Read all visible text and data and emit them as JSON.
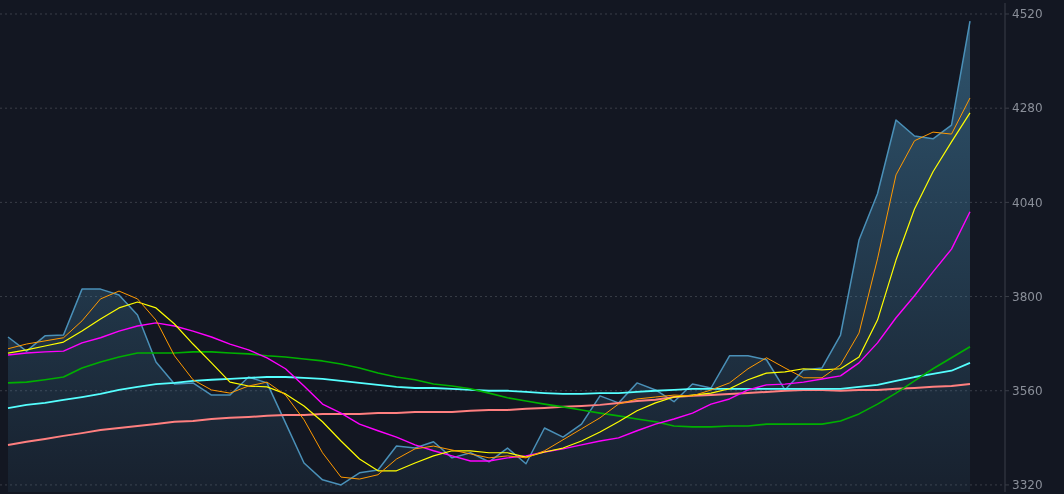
{
  "chart_data": {
    "type": "line",
    "categories": [
      null,
      null,
      null,
      null,
      null,
      null,
      null,
      null,
      null,
      null,
      null,
      null,
      null,
      null,
      null,
      null,
      null,
      null,
      null,
      null,
      null,
      null,
      null,
      null,
      null,
      null,
      null,
      null,
      null,
      null,
      null,
      null,
      null,
      null,
      null,
      null,
      null,
      null,
      null,
      null,
      null,
      null,
      null,
      null,
      null,
      null,
      null,
      null,
      null,
      null,
      null,
      null,
      null
    ],
    "series": [
      {
        "type": "area",
        "color": "#4a90b8",
        "values": [
          3697,
          3661,
          3700,
          3702,
          3819,
          3819,
          3804,
          3753,
          3633,
          3577,
          3580,
          3549,
          3549,
          3595,
          3580,
          3478,
          3376,
          3333,
          3320,
          3351,
          3358,
          3419,
          3414,
          3430,
          3389,
          3402,
          3379,
          3414,
          3374,
          3465,
          3442,
          3475,
          3547,
          3529,
          3580,
          3562,
          3532,
          3577,
          3567,
          3649,
          3649,
          3639,
          3562,
          3613,
          3618,
          3702,
          3944,
          4062,
          4250,
          4209,
          4202,
          4237,
          4502
        ]
      },
      {
        "color": "#ff7f7f",
        "values": [
          3422,
          3430,
          3437,
          3445,
          3452,
          3460,
          3465,
          3470,
          3475,
          3481,
          3483,
          3488,
          3491,
          3493,
          3496,
          3498,
          3498,
          3501,
          3501,
          3501,
          3503,
          3503,
          3506,
          3506,
          3506,
          3509,
          3511,
          3511,
          3514,
          3516,
          3519,
          3521,
          3524,
          3529,
          3534,
          3537,
          3544,
          3547,
          3549,
          3552,
          3554,
          3557,
          3560,
          3562,
          3562,
          3560,
          3562,
          3562,
          3565,
          3567,
          3570,
          3572,
          3577
        ]
      },
      {
        "color": "#55ffff",
        "values": [
          3516,
          3524,
          3529,
          3537,
          3544,
          3552,
          3562,
          3570,
          3577,
          3580,
          3585,
          3588,
          3590,
          3593,
          3595,
          3595,
          3593,
          3590,
          3585,
          3580,
          3575,
          3570,
          3567,
          3567,
          3565,
          3562,
          3560,
          3560,
          3557,
          3554,
          3552,
          3552,
          3554,
          3554,
          3557,
          3560,
          3562,
          3565,
          3565,
          3565,
          3565,
          3565,
          3565,
          3565,
          3565,
          3565,
          3570,
          3575,
          3585,
          3595,
          3603,
          3611,
          3631
        ]
      },
      {
        "color": "#00b000",
        "values": [
          3580,
          3582,
          3588,
          3595,
          3618,
          3633,
          3646,
          3656,
          3656,
          3656,
          3659,
          3659,
          3656,
          3654,
          3649,
          3646,
          3641,
          3636,
          3628,
          3618,
          3605,
          3595,
          3588,
          3577,
          3572,
          3565,
          3554,
          3542,
          3534,
          3526,
          3519,
          3511,
          3503,
          3496,
          3488,
          3481,
          3470,
          3468,
          3468,
          3470,
          3470,
          3475,
          3475,
          3475,
          3475,
          3483,
          3501,
          3526,
          3554,
          3585,
          3616,
          3644,
          3672
        ]
      },
      {
        "color": "#ff00ff",
        "values": [
          3651,
          3656,
          3659,
          3661,
          3682,
          3695,
          3712,
          3725,
          3733,
          3725,
          3712,
          3697,
          3679,
          3664,
          3644,
          3616,
          3572,
          3526,
          3503,
          3475,
          3458,
          3442,
          3422,
          3407,
          3394,
          3381,
          3381,
          3389,
          3394,
          3404,
          3412,
          3422,
          3432,
          3440,
          3458,
          3475,
          3488,
          3503,
          3526,
          3539,
          3562,
          3575,
          3577,
          3582,
          3590,
          3598,
          3631,
          3682,
          3746,
          3802,
          3863,
          3921,
          4016
        ]
      },
      {
        "color": "#ffff00",
        "values": [
          3656,
          3664,
          3674,
          3684,
          3712,
          3743,
          3771,
          3786,
          3771,
          3730,
          3679,
          3631,
          3582,
          3572,
          3570,
          3552,
          3521,
          3481,
          3432,
          3386,
          3356,
          3356,
          3376,
          3394,
          3407,
          3407,
          3402,
          3402,
          3391,
          3404,
          3414,
          3432,
          3455,
          3481,
          3509,
          3529,
          3544,
          3549,
          3554,
          3565,
          3588,
          3605,
          3608,
          3616,
          3613,
          3616,
          3646,
          3740,
          3893,
          4023,
          4118,
          4194,
          4268
        ]
      },
      {
        "color": "#ff9900",
        "values": [
          3667,
          3679,
          3687,
          3695,
          3738,
          3794,
          3814,
          3794,
          3740,
          3649,
          3588,
          3562,
          3554,
          3572,
          3582,
          3549,
          3486,
          3402,
          3340,
          3335,
          3346,
          3386,
          3412,
          3419,
          3409,
          3399,
          3389,
          3394,
          3389,
          3407,
          3435,
          3463,
          3491,
          3526,
          3539,
          3544,
          3549,
          3547,
          3562,
          3580,
          3616,
          3644,
          3618,
          3593,
          3593,
          3626,
          3707,
          3896,
          4110,
          4197,
          4219,
          4214,
          4306
        ]
      }
    ],
    "ylim": [
      3302,
      4548
    ],
    "yticks": [
      3320,
      3560,
      3800,
      4040,
      4280,
      4520
    ],
    "grid": "y",
    "tick_labels": "y"
  }
}
